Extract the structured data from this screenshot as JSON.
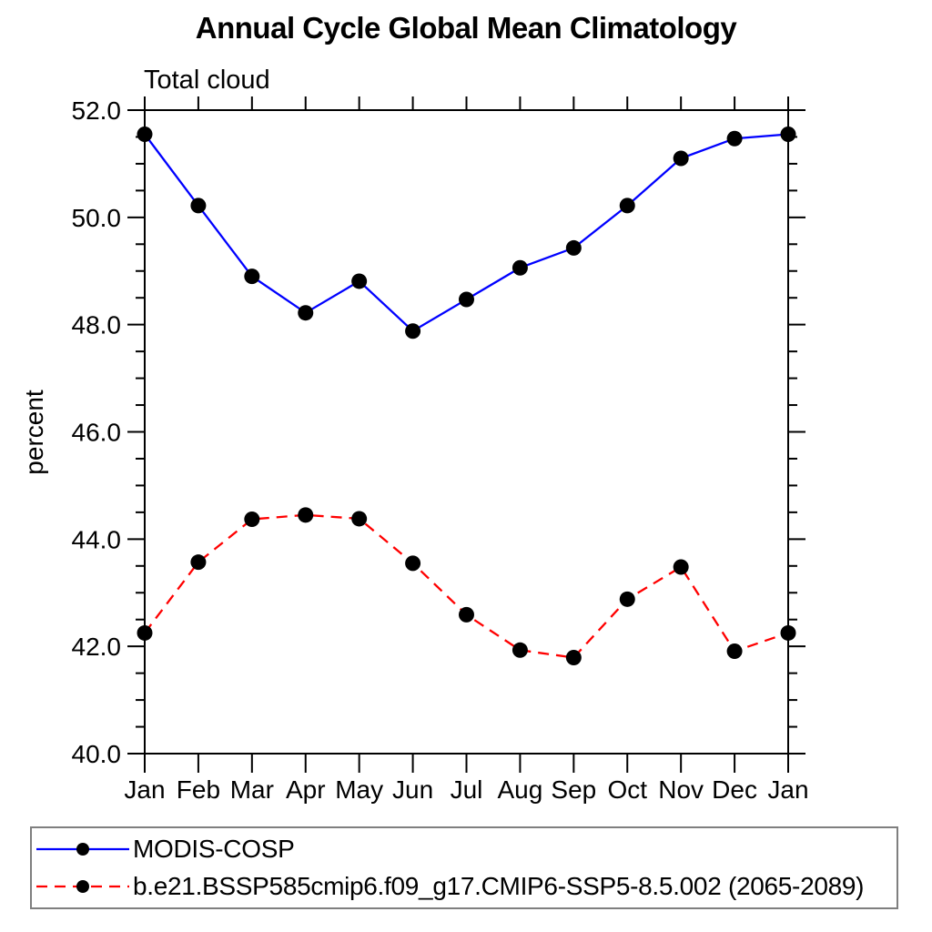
{
  "title": "Annual Cycle Global Mean Climatology",
  "subtitle": "Total cloud",
  "y_axis_label": "percent",
  "chart_data": {
    "type": "line",
    "title": "Annual Cycle Global Mean Climatology",
    "subtitle": "Total cloud",
    "ylabel": "percent",
    "x_tick_labels": [
      "Jan",
      "Feb",
      "Mar",
      "Apr",
      "May",
      "Jun",
      "Jul",
      "Aug",
      "Sep",
      "Oct",
      "Nov",
      "Dec",
      "Jan"
    ],
    "y_tick_labels": [
      "40.0",
      "42.0",
      "44.0",
      "46.0",
      "48.0",
      "50.0",
      "52.0"
    ],
    "ylim": [
      40.0,
      52.0
    ],
    "y_major_step": 2.0,
    "y_minor_step": 0.5,
    "grid": false,
    "legend_position": "bottom-left-box",
    "series": [
      {
        "name": "MODIS-COSP",
        "color": "#0000ff",
        "line_style": "solid",
        "marker": "filled-circle",
        "marker_color": "#000000",
        "values": [
          51.55,
          50.22,
          48.9,
          48.22,
          48.81,
          47.88,
          48.47,
          49.06,
          49.43,
          50.22,
          51.1,
          51.47,
          51.55
        ]
      },
      {
        "name": "b.e21.BSSP585cmip6.f09_g17.CMIP6-SSP5-8.5.002 (2065-2089)",
        "color": "#ff0000",
        "line_style": "dashed",
        "marker": "filled-circle",
        "marker_color": "#000000",
        "values": [
          42.25,
          43.57,
          44.37,
          44.45,
          44.38,
          43.55,
          42.59,
          41.93,
          41.79,
          42.88,
          43.48,
          41.91,
          42.25
        ]
      }
    ]
  },
  "colors": {
    "axis": "#000000",
    "legend_border": "#7f7f7f",
    "background": "#ffffff"
  }
}
